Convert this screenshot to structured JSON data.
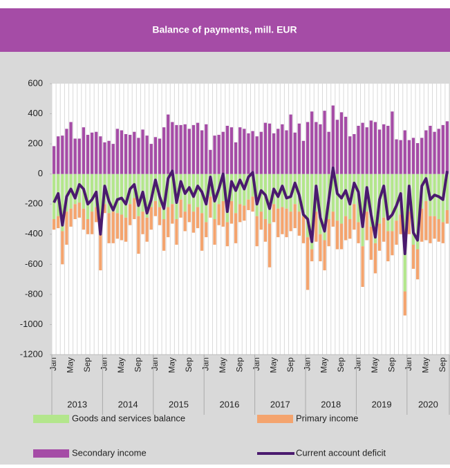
{
  "chart_data": {
    "type": "bar",
    "title": "Balance of payments, mill. EUR",
    "categories": [
      "Jan",
      null,
      null,
      null,
      "May",
      null,
      null,
      null,
      "Sep",
      null,
      null,
      null,
      "Jan",
      null,
      null,
      null,
      "May",
      null,
      null,
      null,
      "Sep",
      null,
      null,
      null,
      "Jan",
      null,
      null,
      null,
      "May",
      null,
      null,
      null,
      "Sep",
      null,
      null,
      null,
      "Jan",
      null,
      null,
      null,
      "May",
      null,
      null,
      null,
      "Sep",
      null,
      null,
      null,
      "Jan",
      null,
      null,
      null,
      "May",
      null,
      null,
      null,
      "Sep",
      null,
      null,
      null,
      "Jan",
      null,
      null,
      null,
      "May",
      null,
      null,
      null,
      "Sep",
      null,
      null,
      null,
      "Jan",
      null,
      null,
      null,
      "May",
      null,
      null,
      null,
      "Sep",
      null,
      null,
      null,
      "Jan",
      null,
      null,
      null,
      "May",
      null,
      null,
      null,
      "Sep",
      null
    ],
    "x_groups": [
      {
        "label": "2013",
        "count": 12
      },
      {
        "label": "2014",
        "count": 12
      },
      {
        "label": "2015",
        "count": 12
      },
      {
        "label": "2016",
        "count": 12
      },
      {
        "label": "2017",
        "count": 12
      },
      {
        "label": "2018",
        "count": 12
      },
      {
        "label": "2019",
        "count": 12
      },
      {
        "label": "2020",
        "count": 10
      }
    ],
    "ylim": [
      -1200,
      600
    ],
    "yticks": [
      600,
      400,
      200,
      0,
      -200,
      -400,
      -600,
      -800,
      -1000,
      -1200
    ],
    "grid": "x",
    "stacked": true,
    "series": [
      {
        "name": "Goods and services balance",
        "type": "bar",
        "color": "#b3e68c",
        "values": [
          -300,
          -280,
          -380,
          -250,
          -230,
          -200,
          -190,
          -230,
          -300,
          -250,
          -220,
          -380,
          -200,
          -260,
          -250,
          -260,
          -270,
          -290,
          -200,
          -160,
          -280,
          -250,
          -290,
          -220,
          -180,
          -220,
          -300,
          -220,
          -200,
          -300,
          -170,
          -250,
          -200,
          -250,
          -220,
          -260,
          -320,
          -150,
          -300,
          -200,
          -180,
          -320,
          -180,
          -260,
          -200,
          -210,
          -170,
          -150,
          -280,
          -250,
          -300,
          -330,
          -200,
          -230,
          -220,
          -230,
          -250,
          -200,
          -250,
          -280,
          -420,
          -500,
          -250,
          -400,
          -440,
          -300,
          -250,
          -310,
          -330,
          -280,
          -300,
          -200,
          -320,
          -480,
          -250,
          -350,
          -460,
          -330,
          -290,
          -380,
          -380,
          -310,
          -270,
          -780,
          -250,
          -470,
          -500,
          -230,
          -180,
          -280,
          -280,
          -300,
          -320,
          -240
        ]
      },
      {
        "name": "Primary income",
        "type": "bar",
        "color": "#f4a46e",
        "values": [
          -70,
          -80,
          -220,
          -220,
          -120,
          -100,
          -100,
          -140,
          -100,
          -150,
          -100,
          -260,
          -60,
          -200,
          -210,
          -170,
          -170,
          -160,
          -140,
          -140,
          -250,
          -150,
          -160,
          -150,
          -100,
          -120,
          -210,
          -200,
          -130,
          -170,
          -120,
          -130,
          -120,
          -140,
          -140,
          -250,
          -100,
          -140,
          -170,
          -140,
          -170,
          -160,
          -150,
          -200,
          -120,
          -100,
          -70,
          -100,
          -200,
          -120,
          -150,
          -290,
          -120,
          -190,
          -180,
          -190,
          -130,
          -160,
          -160,
          -180,
          -350,
          -80,
          -200,
          -180,
          -200,
          -180,
          -100,
          -190,
          -170,
          -160,
          -130,
          -170,
          -140,
          -270,
          -190,
          -220,
          -200,
          -180,
          -160,
          -200,
          -160,
          -160,
          -130,
          -160,
          -150,
          -160,
          -200,
          -220,
          -260,
          -180,
          -150,
          -150,
          -140,
          -90
        ]
      },
      {
        "name": "Secondary income",
        "type": "bar",
        "color": "#a54ca6",
        "values": [
          185,
          250,
          255,
          300,
          345,
          235,
          235,
          310,
          260,
          275,
          280,
          250,
          210,
          220,
          200,
          300,
          290,
          265,
          260,
          280,
          240,
          295,
          255,
          200,
          245,
          235,
          310,
          395,
          345,
          325,
          325,
          330,
          300,
          325,
          340,
          290,
          330,
          160,
          255,
          260,
          280,
          320,
          310,
          210,
          310,
          300,
          270,
          285,
          250,
          280,
          340,
          335,
          270,
          300,
          330,
          290,
          395,
          275,
          335,
          220,
          345,
          415,
          345,
          330,
          420,
          280,
          455,
          360,
          410,
          380,
          250,
          265,
          320,
          340,
          310,
          355,
          345,
          295,
          330,
          320,
          415,
          230,
          225,
          290,
          225,
          240,
          205,
          240,
          290,
          320,
          280,
          300,
          325,
          350
        ]
      },
      {
        "name": "Current account deficit",
        "type": "line",
        "color": "#4a1a6e",
        "values": [
          -190,
          -130,
          -340,
          -150,
          -100,
          -160,
          -70,
          -100,
          -200,
          -170,
          -120,
          -400,
          -80,
          -180,
          -240,
          -170,
          -160,
          -200,
          -100,
          -70,
          -210,
          -120,
          -260,
          -170,
          -40,
          -150,
          -230,
          -30,
          20,
          -190,
          -50,
          -130,
          -90,
          -150,
          -80,
          -120,
          -200,
          -20,
          -180,
          -100,
          0,
          -250,
          -50,
          -110,
          -40,
          -100,
          -20,
          10,
          -200,
          -110,
          -140,
          -230,
          -100,
          -150,
          -80,
          -160,
          -150,
          -60,
          -140,
          -270,
          -300,
          -450,
          -80,
          -290,
          -380,
          -170,
          40,
          -130,
          -160,
          -110,
          -200,
          -60,
          -120,
          -350,
          -90,
          -270,
          -420,
          -170,
          -80,
          -300,
          -270,
          -210,
          -130,
          -530,
          -80,
          -390,
          -440,
          -80,
          -30,
          -170,
          -140,
          -150,
          -170,
          20
        ]
      }
    ]
  }
}
